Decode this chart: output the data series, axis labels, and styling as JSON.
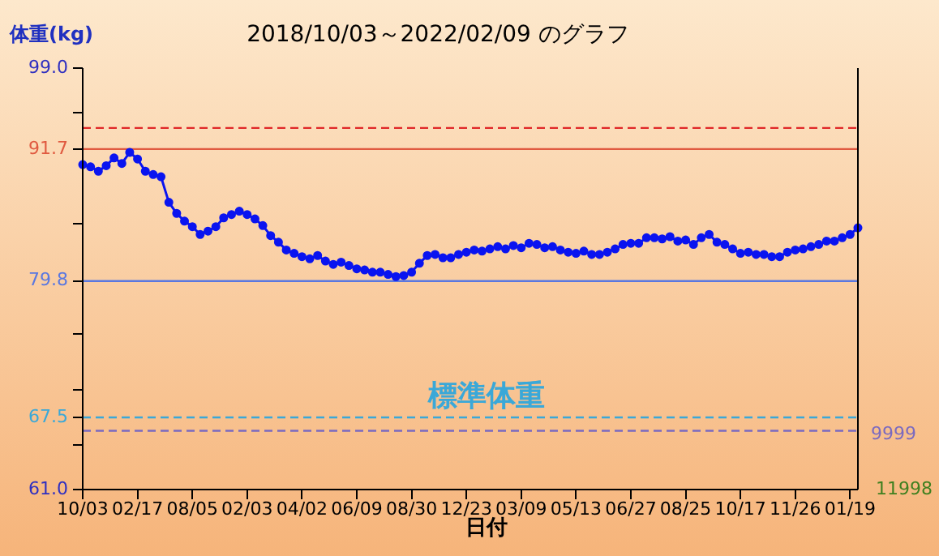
{
  "chart_data": {
    "type": "line",
    "title": "2018/10/03～2022/02/09 のグラフ",
    "ylabel": "体重(kg)",
    "xlabel": "日付",
    "annotations": [
      "9999",
      "11998"
    ],
    "categories": [
      "10/03",
      null,
      null,
      null,
      null,
      null,
      null,
      "02/17",
      null,
      null,
      null,
      null,
      null,
      null,
      "08/05",
      null,
      null,
      null,
      null,
      null,
      null,
      "02/03",
      null,
      null,
      null,
      null,
      null,
      null,
      "04/02",
      null,
      null,
      null,
      null,
      null,
      null,
      "06/09",
      null,
      null,
      null,
      null,
      null,
      null,
      "08/30",
      null,
      null,
      null,
      null,
      null,
      null,
      "12/23",
      null,
      null,
      null,
      null,
      null,
      null,
      "03/09",
      null,
      null,
      null,
      null,
      null,
      null,
      "05/13",
      null,
      null,
      null,
      null,
      null,
      null,
      "06/27",
      null,
      null,
      null,
      null,
      null,
      null,
      "08/25",
      null,
      null,
      null,
      null,
      null,
      null,
      "10/17",
      null,
      null,
      null,
      null,
      null,
      null,
      "11/26",
      null,
      null,
      null,
      null,
      null,
      null,
      "01/19",
      null
    ],
    "ylim": [
      61,
      99
    ],
    "yticks": [
      {
        "value": 61,
        "label": "61.0"
      },
      {
        "value": 65,
        "label": null
      },
      {
        "value": 67.5,
        "label": "67.5"
      },
      {
        "value": 70,
        "label": null
      },
      {
        "value": 75,
        "label": null
      },
      {
        "value": 79.8,
        "label": "79.8"
      },
      {
        "value": 85,
        "label": null
      },
      {
        "value": 91.7,
        "label": "91.7"
      },
      {
        "value": 95,
        "label": null
      },
      {
        "value": 99,
        "label": "99.0"
      }
    ],
    "grid": false,
    "legend": false,
    "marker": "circle",
    "line_style": "solid",
    "ref_lines": [
      {
        "axis": "y",
        "value": 93.6,
        "color": "#e02828",
        "line_style": "dashed"
      },
      {
        "axis": "y",
        "value": 91.7,
        "color": "#e05a40",
        "line_style": "solid"
      },
      {
        "axis": "y",
        "value": 79.8,
        "color": "#5a78e0",
        "line_style": "solid"
      },
      {
        "axis": "y",
        "value": 67.5,
        "color": "#3aa8d8",
        "line_style": "dashed",
        "label": "標準体重"
      },
      {
        "axis": "y",
        "value": 66.3,
        "color": "#7a6ac0",
        "line_style": "dashed"
      }
    ],
    "series": [
      {
        "color": "#0a14f0",
        "values": [
          90.3,
          90.1,
          89.7,
          90.2,
          90.9,
          90.4,
          91.4,
          90.8,
          89.7,
          89.4,
          89.2,
          86.9,
          85.9,
          85.2,
          84.7,
          84.0,
          84.3,
          84.7,
          85.5,
          85.8,
          86.1,
          85.8,
          85.4,
          84.8,
          83.9,
          83.3,
          82.6,
          82.3,
          82.0,
          81.8,
          82.1,
          81.6,
          81.3,
          81.5,
          81.2,
          80.9,
          80.8,
          80.6,
          80.6,
          80.4,
          80.2,
          80.3,
          80.6,
          81.4,
          82.1,
          82.2,
          81.9,
          81.9,
          82.2,
          82.4,
          82.6,
          82.5,
          82.7,
          82.9,
          82.7,
          83.0,
          82.8,
          83.2,
          83.1,
          82.8,
          82.9,
          82.6,
          82.4,
          82.3,
          82.5,
          82.2,
          82.2,
          82.4,
          82.7,
          83.1,
          83.2,
          83.2,
          83.7,
          83.7,
          83.6,
          83.8,
          83.4,
          83.5,
          83.1,
          83.7,
          84.0,
          83.3,
          83.1,
          82.7,
          82.3,
          82.4,
          82.2,
          82.2,
          82.0,
          82.0,
          82.4,
          82.6,
          82.7,
          82.9,
          83.1,
          83.4,
          83.4,
          83.7,
          84.0,
          84.6
        ]
      }
    ]
  }
}
